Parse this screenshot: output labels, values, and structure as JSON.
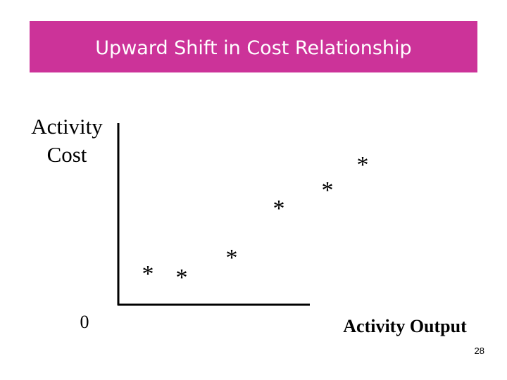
{
  "title": "Upward Shift in Cost Relationship",
  "y_axis_label": [
    "Activity",
    "Cost"
  ],
  "origin_label": "0",
  "x_axis_label": "Activity Output",
  "markers": [
    "*",
    "*",
    "*",
    "*",
    "*",
    "*"
  ],
  "page_number": "28"
}
